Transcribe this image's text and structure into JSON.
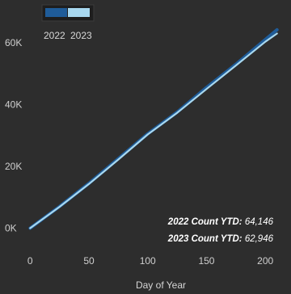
{
  "chart_data": {
    "type": "line",
    "xlabel": "Day of Year",
    "ylabel": "",
    "xlim": [
      -5,
      215
    ],
    "ylim": [
      -3000,
      67000
    ],
    "x_ticks": [
      0,
      50,
      100,
      150,
      200
    ],
    "y_ticks": [
      0,
      20000,
      40000,
      60000
    ],
    "y_tick_labels": [
      "0K",
      "20K",
      "40K",
      "60K"
    ],
    "legend_position": "top-left",
    "series": [
      {
        "name": "2022",
        "color": "#1f5c99",
        "x": [
          0,
          25,
          50,
          75,
          100,
          125,
          150,
          175,
          200,
          210
        ],
        "y": [
          0,
          7000,
          14500,
          22500,
          30500,
          37500,
          45500,
          53000,
          61000,
          64146
        ]
      },
      {
        "name": "2023",
        "color": "#a8d8ef",
        "x": [
          0,
          25,
          50,
          75,
          100,
          125,
          150,
          175,
          200,
          210
        ],
        "y": [
          0,
          6900,
          14300,
          22200,
          30300,
          37300,
          45000,
          52600,
          60300,
          62946
        ]
      }
    ],
    "annotations": [
      {
        "label": "2022 Count YTD:",
        "value": "64,146"
      },
      {
        "label": "2023 Count YTD:",
        "value": "62,946"
      }
    ]
  }
}
